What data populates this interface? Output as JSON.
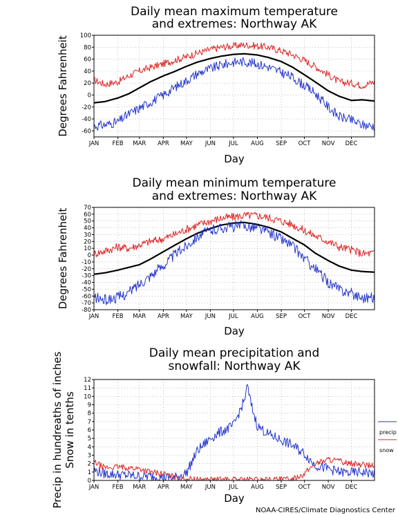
{
  "credit": "NOAA-CIRES/Climate Diagnostics Center",
  "colors": {
    "extreme_max": "#dd2222",
    "mean": "#000000",
    "extreme_min": "#2233cc",
    "precip": "#2233cc",
    "snow": "#dd2222",
    "grid": "#999999"
  },
  "chart_data": [
    {
      "type": "line",
      "title": [
        "Daily mean maximum temperature",
        "and extremes: Northway AK"
      ],
      "xlabel": "Day",
      "ylabel": "Degrees Fahrenheit",
      "categories": [
        "JAN",
        "FEB",
        "MAR",
        "APR",
        "MAY",
        "JUN",
        "JUL",
        "AUG",
        "SEP",
        "OCT",
        "NOV",
        "DEC"
      ],
      "yticks": [
        100,
        80,
        60,
        40,
        20,
        0,
        -20,
        -40,
        -60
      ],
      "ylim": [
        -70,
        100
      ],
      "grid": true,
      "series": [
        {
          "key": "extreme_max",
          "x": [
            1,
            15,
            32,
            46,
            60,
            74,
            91,
            105,
            121,
            135,
            152,
            166,
            182,
            196,
            213,
            227,
            244,
            258,
            274,
            288,
            305,
            319,
            335,
            349,
            365
          ],
          "values": [
            25,
            18,
            22,
            32,
            40,
            46,
            52,
            58,
            64,
            70,
            76,
            80,
            82,
            84,
            82,
            80,
            74,
            68,
            58,
            48,
            34,
            22,
            20,
            16,
            22
          ]
        },
        {
          "key": "mean",
          "x": [
            1,
            15,
            32,
            46,
            60,
            74,
            91,
            105,
            121,
            135,
            152,
            166,
            182,
            196,
            213,
            227,
            244,
            258,
            274,
            288,
            305,
            319,
            335,
            349,
            365
          ],
          "values": [
            -13,
            -11,
            -5,
            2,
            12,
            22,
            32,
            39,
            48,
            55,
            61,
            65,
            68,
            69,
            67,
            63,
            56,
            47,
            34,
            22,
            7,
            -2,
            -9,
            -8,
            -10
          ]
        },
        {
          "key": "extreme_min",
          "x": [
            1,
            15,
            32,
            46,
            60,
            74,
            91,
            105,
            121,
            135,
            152,
            166,
            182,
            196,
            213,
            227,
            244,
            258,
            274,
            288,
            305,
            319,
            335,
            349,
            365
          ],
          "values": [
            -52,
            -50,
            -45,
            -32,
            -22,
            -12,
            0,
            12,
            24,
            36,
            44,
            50,
            55,
            56,
            52,
            47,
            38,
            30,
            16,
            3,
            -20,
            -36,
            -42,
            -50,
            -52
          ]
        }
      ]
    },
    {
      "type": "line",
      "title": [
        "Daily mean minimum temperature",
        "and extremes: Northway AK"
      ],
      "xlabel": "Day",
      "ylabel": "Degrees Fahrenheit",
      "categories": [
        "JAN",
        "FEB",
        "MAR",
        "APR",
        "MAY",
        "JUN",
        "JUL",
        "AUG",
        "SEP",
        "OCT",
        "NOV",
        "DEC"
      ],
      "yticks": [
        70,
        60,
        50,
        40,
        30,
        20,
        10,
        0,
        -10,
        -20,
        -30,
        -40,
        -50,
        -60,
        -70,
        -80
      ],
      "ylim": [
        -80,
        70
      ],
      "grid": true,
      "series": [
        {
          "key": "extreme_max",
          "x": [
            1,
            15,
            32,
            46,
            60,
            74,
            91,
            105,
            121,
            135,
            152,
            166,
            182,
            196,
            213,
            227,
            244,
            258,
            274,
            288,
            305,
            319,
            335,
            349,
            365
          ],
          "values": [
            2,
            6,
            12,
            10,
            15,
            20,
            24,
            30,
            38,
            44,
            50,
            54,
            56,
            58,
            58,
            55,
            50,
            45,
            36,
            28,
            20,
            12,
            8,
            2,
            3
          ]
        },
        {
          "key": "mean",
          "x": [
            1,
            15,
            32,
            46,
            60,
            74,
            91,
            105,
            121,
            135,
            152,
            166,
            182,
            196,
            213,
            227,
            244,
            258,
            274,
            288,
            305,
            319,
            335,
            349,
            365
          ],
          "values": [
            -28,
            -26,
            -22,
            -18,
            -14,
            -6,
            5,
            14,
            24,
            32,
            39,
            44,
            47,
            48,
            45,
            41,
            34,
            25,
            15,
            3,
            -8,
            -16,
            -22,
            -24,
            -25
          ]
        },
        {
          "key": "extreme_min",
          "x": [
            1,
            15,
            32,
            46,
            60,
            74,
            91,
            105,
            121,
            135,
            152,
            166,
            182,
            196,
            213,
            227,
            244,
            258,
            274,
            288,
            305,
            319,
            335,
            349,
            365
          ],
          "values": [
            -62,
            -66,
            -62,
            -55,
            -42,
            -30,
            -15,
            0,
            14,
            28,
            36,
            40,
            42,
            43,
            40,
            34,
            24,
            14,
            -5,
            -20,
            -40,
            -50,
            -56,
            -62,
            -62
          ]
        }
      ]
    },
    {
      "type": "line",
      "title": [
        "Daily mean precipitation and",
        "snowfall: Northway AK"
      ],
      "xlabel": "Day",
      "ylabel": [
        "Precip in hundreaths of inches",
        "Snow in tenths"
      ],
      "categories": [
        "JAN",
        "FEB",
        "MAR",
        "APR",
        "MAY",
        "JUN",
        "JUL",
        "AUG",
        "SEP",
        "OCT",
        "NOV",
        "DEC"
      ],
      "yticks": [
        12,
        11,
        10,
        9,
        8,
        7,
        6,
        5,
        4,
        3,
        2,
        1,
        0
      ],
      "ylim": [
        0,
        12
      ],
      "grid": true,
      "legend": {
        "position": "right",
        "items": [
          {
            "key": "precip",
            "label": "precip"
          },
          {
            "key": "snow",
            "label": "snow"
          }
        ]
      },
      "series": [
        {
          "key": "precip",
          "x": [
            1,
            15,
            32,
            46,
            60,
            74,
            91,
            105,
            121,
            135,
            152,
            166,
            182,
            196,
            200,
            205,
            213,
            227,
            244,
            258,
            274,
            288,
            305,
            319,
            335,
            349,
            365
          ],
          "values": [
            1.2,
            0.8,
            0.7,
            0.6,
            0.5,
            0.5,
            0.4,
            0.3,
            0.9,
            3.5,
            5.0,
            5.8,
            6.5,
            9.5,
            11.2,
            9.0,
            6.5,
            5.5,
            4.8,
            4.2,
            3.2,
            1.8,
            1.4,
            1.0,
            0.9,
            1.0,
            0.8
          ]
        },
        {
          "key": "snow",
          "x": [
            1,
            15,
            32,
            46,
            60,
            74,
            91,
            105,
            121,
            135,
            152,
            166,
            182,
            196,
            213,
            227,
            244,
            258,
            274,
            288,
            305,
            319,
            335,
            349,
            365
          ],
          "values": [
            2.2,
            1.5,
            1.6,
            1.5,
            1.4,
            1.0,
            0.8,
            0.4,
            0.2,
            0.1,
            0.1,
            0.1,
            0.1,
            0.1,
            0.1,
            0.1,
            0.1,
            0.2,
            0.8,
            2.0,
            2.5,
            2.3,
            2.0,
            1.9,
            1.7
          ]
        }
      ]
    }
  ]
}
